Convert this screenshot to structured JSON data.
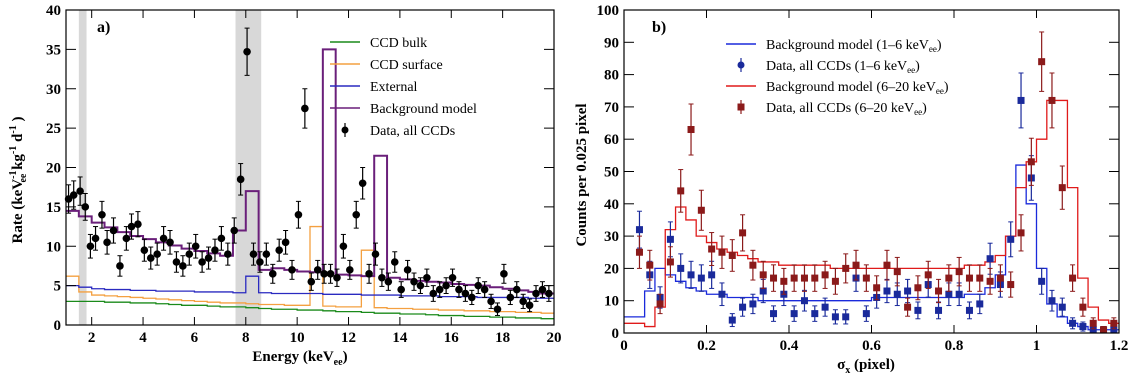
{
  "chart_data": [
    {
      "type": "line",
      "panel_label": "a)",
      "xlabel": "Energy (keV",
      "xlabel_sub": "ee",
      "xlabel_close": ")",
      "ylabel_parts": [
        "Rate (keV",
        "-1",
        "ee",
        " kg",
        "-1",
        " d",
        "-1",
        " )"
      ],
      "xlim": [
        1,
        20
      ],
      "ylim": [
        0,
        40
      ],
      "xticks": [
        2,
        4,
        6,
        8,
        10,
        12,
        14,
        16,
        18,
        20
      ],
      "yticks": [
        0,
        5,
        10,
        15,
        20,
        25,
        30,
        35,
        40
      ],
      "shaded_bands": [
        [
          1.5,
          1.8
        ],
        [
          7.6,
          8.6
        ]
      ],
      "bin_edges": [
        1,
        1.5,
        2,
        2.5,
        3,
        3.5,
        4,
        4.5,
        5,
        5.5,
        6,
        6.5,
        7,
        7.5,
        8,
        8.5,
        9,
        9.5,
        10,
        10.5,
        11,
        11.5,
        12,
        12.5,
        13,
        13.5,
        14,
        14.5,
        15,
        15.5,
        16,
        16.5,
        17,
        17.5,
        18,
        18.5,
        19,
        19.5,
        20
      ],
      "series": [
        {
          "name": "CCD bulk",
          "color": "#1a8a1a",
          "kind": "hist",
          "values": [
            3.0,
            3.0,
            3.0,
            2.9,
            2.9,
            2.8,
            2.8,
            2.7,
            2.6,
            2.5,
            2.5,
            2.4,
            2.3,
            2.3,
            2.2,
            2.1,
            2.0,
            2.0,
            1.9,
            1.9,
            1.8,
            1.7,
            1.7,
            1.6,
            1.5,
            1.5,
            1.4,
            1.4,
            1.3,
            1.2,
            1.2,
            1.1,
            1.1,
            1.0,
            1.0,
            0.9,
            0.9,
            0.8
          ]
        },
        {
          "name": "CCD surface",
          "color": "#f4a040",
          "kind": "hist",
          "values": [
            6.2,
            4.2,
            3.8,
            3.7,
            3.6,
            3.5,
            3.4,
            3.3,
            3.2,
            3.1,
            3.0,
            2.9,
            2.8,
            2.8,
            2.7,
            2.6,
            2.6,
            2.5,
            2.5,
            12.5,
            2.4,
            2.3,
            2.3,
            9.5,
            2.2,
            2.1,
            2.1,
            2.0,
            2.0,
            1.9,
            1.9,
            1.8,
            1.8,
            1.7,
            1.7,
            1.6,
            1.6,
            1.5
          ]
        },
        {
          "name": "External",
          "color": "#2a2ac0",
          "kind": "hist",
          "values": [
            5.0,
            4.8,
            4.6,
            4.5,
            4.5,
            4.4,
            4.4,
            4.3,
            4.3,
            4.3,
            4.2,
            4.2,
            4.2,
            4.1,
            6.2,
            4.1,
            4.0,
            4.0,
            4.0,
            4.0,
            3.9,
            3.9,
            3.9,
            3.8,
            3.8,
            3.8,
            3.7,
            3.7,
            3.7,
            3.6,
            3.6,
            3.6,
            3.5,
            3.5,
            3.5,
            3.5,
            3.4,
            3.4
          ]
        },
        {
          "name": "Background model",
          "color": "#6a1f7a",
          "kind": "hist",
          "values": [
            14.5,
            13.8,
            13.0,
            12.4,
            11.8,
            11.3,
            10.9,
            10.5,
            10.1,
            9.7,
            9.4,
            9.1,
            8.8,
            12.0,
            17.0,
            7.0,
            7.2,
            7.0,
            6.8,
            6.7,
            35.0,
            6.4,
            6.3,
            6.2,
            21.5,
            6.0,
            5.8,
            5.6,
            5.5,
            5.4,
            5.2,
            5.1,
            5.0,
            4.8,
            4.6,
            4.4,
            4.2,
            4.0
          ]
        },
        {
          "name": "Data, all CCDs",
          "color": "#000000",
          "kind": "points",
          "x": [
            1.1,
            1.3,
            1.55,
            1.75,
            1.95,
            2.15,
            2.4,
            2.6,
            2.85,
            3.1,
            3.35,
            3.55,
            3.8,
            4.05,
            4.3,
            4.55,
            4.8,
            5.05,
            5.3,
            5.55,
            5.8,
            6.05,
            6.3,
            6.55,
            6.8,
            7.05,
            7.3,
            7.55,
            7.8,
            8.05,
            8.3,
            8.55,
            8.8,
            9.05,
            9.3,
            9.55,
            9.8,
            10.05,
            10.3,
            10.55,
            10.8,
            11.05,
            11.3,
            11.55,
            11.8,
            12.05,
            12.3,
            12.55,
            12.8,
            13.05,
            13.3,
            13.55,
            13.8,
            14.05,
            14.3,
            14.55,
            14.8,
            15.05,
            15.3,
            15.55,
            15.8,
            16.05,
            16.3,
            16.55,
            16.8,
            17.05,
            17.3,
            17.55,
            17.8,
            18.05,
            18.3,
            18.55,
            18.8,
            19.05,
            19.3,
            19.55,
            19.8
          ],
          "y": [
            16.0,
            16.5,
            17.0,
            15.0,
            10.0,
            11.0,
            14.0,
            10.5,
            12.0,
            7.5,
            11.0,
            12.5,
            12.8,
            9.5,
            8.5,
            9.0,
            11.0,
            10.5,
            8.0,
            7.5,
            9.0,
            10.0,
            8.0,
            8.5,
            9.5,
            11.0,
            9.0,
            12.0,
            18.5,
            34.7,
            9.0,
            8.0,
            9.0,
            6.5,
            9.5,
            10.5,
            7.0,
            14.0,
            27.5,
            5.5,
            7.0,
            6.5,
            6.5,
            6.0,
            10.0,
            7.0,
            14.0,
            18.0,
            6.5,
            9.0,
            6.0,
            5.5,
            8.0,
            4.5,
            7.0,
            5.5,
            5.0,
            6.0,
            4.0,
            4.5,
            5.0,
            6.0,
            4.5,
            4.0,
            3.5,
            5.0,
            4.5,
            3.0,
            2.0,
            6.5,
            3.5,
            4.5,
            3.0,
            2.5,
            4.0,
            4.5,
            4.0
          ],
          "err": [
            1.8,
            1.8,
            1.8,
            1.7,
            1.5,
            1.5,
            1.7,
            1.5,
            1.6,
            1.3,
            1.5,
            1.6,
            1.6,
            1.4,
            1.4,
            1.4,
            1.5,
            1.5,
            1.3,
            1.3,
            1.4,
            1.5,
            1.3,
            1.4,
            1.4,
            1.5,
            1.4,
            1.6,
            2.0,
            3.0,
            1.4,
            1.3,
            1.4,
            1.2,
            1.4,
            1.5,
            1.2,
            1.7,
            2.5,
            1.1,
            1.2,
            1.2,
            1.2,
            1.1,
            1.5,
            1.2,
            1.7,
            2.0,
            1.2,
            1.4,
            1.1,
            1.1,
            1.3,
            1.0,
            1.2,
            1.1,
            1.0,
            1.1,
            1.0,
            1.0,
            1.0,
            1.1,
            1.0,
            1.0,
            0.9,
            1.0,
            1.0,
            0.9,
            0.8,
            1.2,
            0.9,
            1.0,
            0.9,
            0.8,
            1.0,
            1.0,
            1.0
          ]
        }
      ],
      "legend_placement": "top-right"
    },
    {
      "type": "line",
      "panel_label": "b)",
      "xlabel": "σ",
      "xlabel_sub": "x",
      "xlabel_close": " (pixel)",
      "ylabel": "Counts per 0.025 pixel",
      "xlim": [
        0,
        1.2
      ],
      "ylim": [
        0,
        100
      ],
      "xticks": [
        0,
        0.2,
        0.4,
        0.6,
        0.8,
        1,
        1.2
      ],
      "xtick_labels": [
        "0",
        "0.2",
        "0.4",
        "0.6",
        "0.8",
        "1",
        "1.2"
      ],
      "yticks": [
        0,
        10,
        20,
        30,
        40,
        50,
        60,
        70,
        80,
        90,
        100
      ],
      "bin_edges": [
        0,
        0.025,
        0.05,
        0.075,
        0.1,
        0.125,
        0.15,
        0.175,
        0.2,
        0.225,
        0.25,
        0.275,
        0.3,
        0.325,
        0.35,
        0.375,
        0.4,
        0.425,
        0.45,
        0.475,
        0.5,
        0.525,
        0.55,
        0.575,
        0.6,
        0.625,
        0.65,
        0.675,
        0.7,
        0.725,
        0.75,
        0.775,
        0.8,
        0.825,
        0.85,
        0.875,
        0.9,
        0.925,
        0.95,
        0.975,
        1.0,
        1.025,
        1.05,
        1.075,
        1.1,
        1.125,
        1.15,
        1.175,
        1.2
      ],
      "series": [
        {
          "name": "Background model (1–6 keV",
          "name_sub": "ee",
          "name_close": ")",
          "color": "#1a2adb",
          "kind": "hist",
          "values": [
            5,
            5,
            13,
            20,
            18,
            16,
            14,
            13,
            12,
            12,
            11,
            11,
            11,
            10,
            10,
            10,
            10,
            10,
            10,
            10,
            10,
            10,
            10,
            10,
            11,
            11,
            11,
            11,
            11,
            11,
            11,
            11,
            11,
            12,
            12,
            14,
            18,
            30,
            52,
            40,
            20,
            9,
            5,
            3,
            2,
            1,
            1,
            1
          ]
        },
        {
          "name": "Data, all CCDs (1–6 keV",
          "name_sub": "ee",
          "name_close": ")",
          "color": "#1a2a9b",
          "kind": "points",
          "x": [
            0.0375,
            0.0625,
            0.0875,
            0.1125,
            0.1375,
            0.1625,
            0.1875,
            0.2125,
            0.2375,
            0.2625,
            0.2875,
            0.3125,
            0.3375,
            0.3625,
            0.3875,
            0.4125,
            0.4375,
            0.4625,
            0.4875,
            0.5125,
            0.5375,
            0.5625,
            0.5875,
            0.6125,
            0.6375,
            0.6625,
            0.6875,
            0.7125,
            0.7375,
            0.7625,
            0.7875,
            0.8125,
            0.8375,
            0.8625,
            0.8875,
            0.9125,
            0.9375,
            0.9625,
            0.9875,
            1.0125,
            1.0375,
            1.0625,
            1.0875,
            1.1125,
            1.1375,
            1.1625,
            1.1875
          ],
          "y": [
            32,
            18,
            11,
            29,
            20,
            18,
            17,
            18,
            12,
            4,
            8,
            9,
            13,
            6,
            12,
            6,
            10,
            6,
            8,
            5,
            5,
            17,
            6,
            11,
            13,
            12,
            13,
            7,
            15,
            7,
            12,
            12,
            7,
            9,
            23,
            15,
            29,
            72,
            48,
            16,
            10,
            8,
            3,
            2,
            1,
            1,
            1
          ],
          "err": [
            5.7,
            4.2,
            3.3,
            5.4,
            4.5,
            4.2,
            4.1,
            4.2,
            3.5,
            2.0,
            2.8,
            3.0,
            3.6,
            2.4,
            3.5,
            2.4,
            3.2,
            2.4,
            2.8,
            2.2,
            2.2,
            4.1,
            2.4,
            3.3,
            3.6,
            3.5,
            3.6,
            2.6,
            3.9,
            2.6,
            3.5,
            3.5,
            2.6,
            3.0,
            4.8,
            3.9,
            5.4,
            8.5,
            6.9,
            4.0,
            3.2,
            2.8,
            1.7,
            1.4,
            1.0,
            1.0,
            1.0
          ]
        },
        {
          "name": "Background model (6–20 keV",
          "name_sub": "ee",
          "name_close": ")",
          "color": "#e01a1a",
          "kind": "hist",
          "values": [
            3,
            3,
            2,
            8,
            32,
            39,
            35,
            30,
            28,
            26,
            25,
            24,
            23,
            22,
            22,
            21,
            21,
            21,
            21,
            21,
            20,
            20,
            20,
            20,
            20,
            20,
            20,
            20,
            20,
            20,
            20,
            20,
            20,
            21,
            21,
            22,
            24,
            30,
            45,
            53,
            60,
            72,
            72,
            45,
            17,
            8,
            4,
            3
          ]
        },
        {
          "name": "Data, all CCDs (6–20 keV",
          "name_sub": "ee",
          "name_close": ")",
          "color": "#8b1a1a",
          "kind": "points",
          "x": [
            0.0375,
            0.0625,
            0.0875,
            0.1125,
            0.1375,
            0.1625,
            0.1875,
            0.2125,
            0.2375,
            0.2625,
            0.2875,
            0.3125,
            0.3375,
            0.3625,
            0.3875,
            0.4125,
            0.4375,
            0.4625,
            0.4875,
            0.5125,
            0.5375,
            0.5625,
            0.5875,
            0.6125,
            0.6375,
            0.6625,
            0.6875,
            0.7125,
            0.7375,
            0.7625,
            0.7875,
            0.8125,
            0.8375,
            0.8625,
            0.8875,
            0.9125,
            0.9375,
            0.9625,
            0.9875,
            1.0125,
            1.0375,
            1.0625,
            1.0875,
            1.1125,
            1.1375,
            1.1625,
            1.1875
          ],
          "y": [
            25,
            21,
            9,
            22,
            44,
            63,
            38,
            26,
            25,
            24,
            31,
            21,
            18,
            17,
            16,
            17,
            17,
            17,
            18,
            16,
            20,
            21,
            17,
            14,
            21,
            19,
            8,
            14,
            18,
            13,
            17,
            19,
            17,
            17,
            16,
            17,
            15,
            31,
            53,
            84,
            72,
            45,
            17,
            8,
            3,
            1,
            3
          ],
          "err": [
            5.0,
            4.6,
            3.0,
            4.7,
            6.6,
            7.9,
            6.2,
            5.1,
            5.0,
            4.9,
            5.6,
            4.6,
            4.2,
            4.1,
            4.0,
            4.1,
            4.1,
            4.1,
            4.2,
            4.0,
            4.5,
            4.6,
            4.1,
            3.7,
            4.6,
            4.4,
            2.8,
            3.7,
            4.2,
            3.6,
            4.1,
            4.4,
            4.1,
            4.1,
            4.0,
            4.1,
            3.9,
            5.6,
            7.3,
            9.2,
            8.5,
            6.7,
            4.1,
            2.8,
            1.7,
            1.0,
            1.7
          ]
        }
      ],
      "legend_placement": "top-center"
    }
  ]
}
